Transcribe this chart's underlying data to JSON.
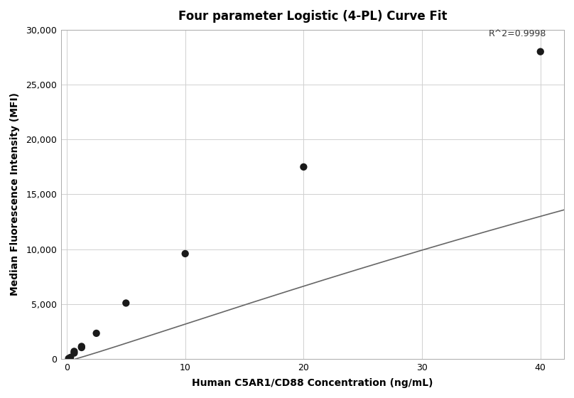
{
  "title": "Four parameter Logistic (4-PL) Curve Fit",
  "xlabel": "Human C5AR1/CD88 Concentration (ng/mL)",
  "ylabel": "Median Fluorescence Intensity (MFI)",
  "r_squared": "R^2=0.9998",
  "data_points_x": [
    0.156,
    0.313,
    0.625,
    0.625,
    1.25,
    1.25,
    2.5,
    5.0,
    10.0,
    20.0,
    40.0
  ],
  "data_points_y": [
    50,
    150,
    550,
    700,
    1050,
    1150,
    2350,
    5100,
    9600,
    17500,
    28000
  ],
  "xlim": [
    -0.5,
    42
  ],
  "ylim": [
    0,
    30000
  ],
  "xticks": [
    0,
    10,
    20,
    30,
    40
  ],
  "yticks": [
    0,
    5000,
    10000,
    15000,
    20000,
    25000,
    30000
  ],
  "background_color": "#ffffff",
  "grid_color": "#d0d0d0",
  "dot_color": "#1a1a1a",
  "line_color": "#666666",
  "title_fontsize": 12,
  "label_fontsize": 10,
  "tick_fontsize": 9,
  "4pl_A": -200.0,
  "4pl_B": 1.08,
  "4pl_C": 180.0,
  "4pl_D": 80000.0,
  "r2_x": 40.5,
  "r2_y": 29200
}
